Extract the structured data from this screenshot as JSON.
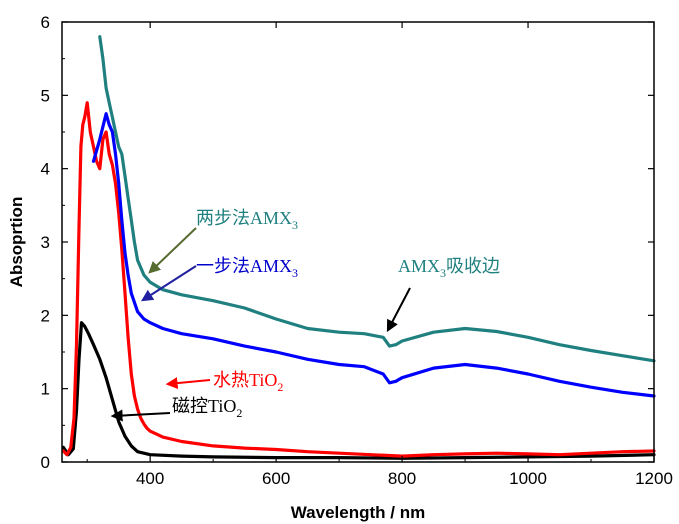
{
  "chart_data": {
    "type": "line",
    "xlabel": "Wavelength / nm",
    "ylabel": "Absoprtion",
    "xlim": [
      260,
      1200
    ],
    "ylim": [
      0,
      6
    ],
    "xticks": [
      "400",
      "600",
      "800",
      "1000",
      "1200"
    ],
    "yticks": [
      "0",
      "1",
      "2",
      "3",
      "4",
      "5",
      "6"
    ],
    "grid": false,
    "series": [
      {
        "key": "black",
        "color": "#000000",
        "x": [
          262,
          270,
          278,
          283,
          287,
          291,
          296,
          302,
          310,
          320,
          330,
          340,
          350,
          360,
          370,
          380,
          400,
          450,
          500,
          600,
          700,
          800,
          900,
          1000,
          1100,
          1200
        ],
        "y": [
          0.2,
          0.1,
          0.18,
          0.7,
          1.4,
          1.9,
          1.85,
          1.75,
          1.6,
          1.4,
          1.15,
          0.85,
          0.55,
          0.35,
          0.22,
          0.14,
          0.1,
          0.08,
          0.07,
          0.06,
          0.06,
          0.05,
          0.06,
          0.07,
          0.08,
          0.1
        ]
      },
      {
        "key": "red",
        "color": "#ff0000",
        "x": [
          262,
          268,
          274,
          279,
          283,
          287,
          290,
          293,
          296,
          300,
          305,
          310,
          315,
          320,
          325,
          330,
          335,
          340,
          345,
          350,
          355,
          360,
          365,
          370,
          375,
          380,
          385,
          390,
          395,
          400,
          410,
          420,
          450,
          500,
          550,
          600,
          650,
          700,
          750,
          800,
          850,
          900,
          950,
          1000,
          1050,
          1100,
          1150,
          1200
        ],
        "y": [
          0.15,
          0.1,
          0.2,
          0.6,
          1.6,
          3.2,
          4.3,
          4.6,
          4.7,
          4.9,
          4.5,
          4.3,
          4.1,
          4.0,
          4.4,
          4.5,
          4.2,
          4.05,
          3.8,
          3.4,
          2.9,
          2.3,
          1.7,
          1.2,
          0.9,
          0.72,
          0.6,
          0.52,
          0.46,
          0.42,
          0.38,
          0.34,
          0.28,
          0.22,
          0.19,
          0.17,
          0.14,
          0.12,
          0.1,
          0.08,
          0.1,
          0.11,
          0.12,
          0.11,
          0.1,
          0.12,
          0.14,
          0.15
        ]
      },
      {
        "key": "blue",
        "color": "#0000ff",
        "x": [
          310,
          320,
          330,
          335,
          340,
          345,
          350,
          355,
          360,
          365,
          370,
          380,
          390,
          400,
          420,
          450,
          500,
          550,
          600,
          650,
          700,
          740,
          770,
          780,
          790,
          800,
          850,
          900,
          950,
          1000,
          1050,
          1100,
          1150,
          1200
        ],
        "y": [
          4.1,
          4.4,
          4.75,
          4.6,
          4.5,
          4.2,
          3.8,
          3.3,
          2.85,
          2.55,
          2.3,
          2.05,
          1.95,
          1.9,
          1.82,
          1.75,
          1.68,
          1.58,
          1.5,
          1.4,
          1.33,
          1.3,
          1.2,
          1.08,
          1.1,
          1.15,
          1.28,
          1.33,
          1.28,
          1.2,
          1.1,
          1.02,
          0.95,
          0.9
        ]
      },
      {
        "key": "teal",
        "color": "#208080",
        "x": [
          320,
          325,
          330,
          335,
          340,
          345,
          350,
          355,
          360,
          365,
          370,
          375,
          380,
          390,
          400,
          420,
          450,
          500,
          550,
          600,
          650,
          700,
          740,
          770,
          780,
          790,
          800,
          850,
          900,
          950,
          1000,
          1050,
          1100,
          1150,
          1200
        ],
        "y": [
          5.8,
          5.5,
          5.1,
          4.9,
          4.7,
          4.5,
          4.3,
          4.2,
          3.9,
          3.6,
          3.3,
          3.0,
          2.75,
          2.55,
          2.45,
          2.35,
          2.28,
          2.2,
          2.1,
          1.95,
          1.82,
          1.77,
          1.75,
          1.7,
          1.58,
          1.6,
          1.65,
          1.77,
          1.82,
          1.78,
          1.7,
          1.6,
          1.52,
          1.45,
          1.38
        ]
      }
    ],
    "annotations": [
      {
        "key": "teal",
        "main": "两步法AMX",
        "sub": "3",
        "suffix": "",
        "color": "#208080"
      },
      {
        "key": "blue",
        "main": "一步法AMX",
        "sub": "3",
        "suffix": "",
        "color": "#0000cc"
      },
      {
        "key": "edge",
        "main": "AMX",
        "sub": "3",
        "suffix": "吸收边",
        "color": "#208080"
      },
      {
        "key": "red",
        "main": "水热TiO",
        "sub": "2",
        "suffix": "",
        "color": "#ff0000"
      },
      {
        "key": "black",
        "main": "磁控TiO",
        "sub": "2",
        "suffix": "",
        "color": "#000000"
      }
    ]
  }
}
